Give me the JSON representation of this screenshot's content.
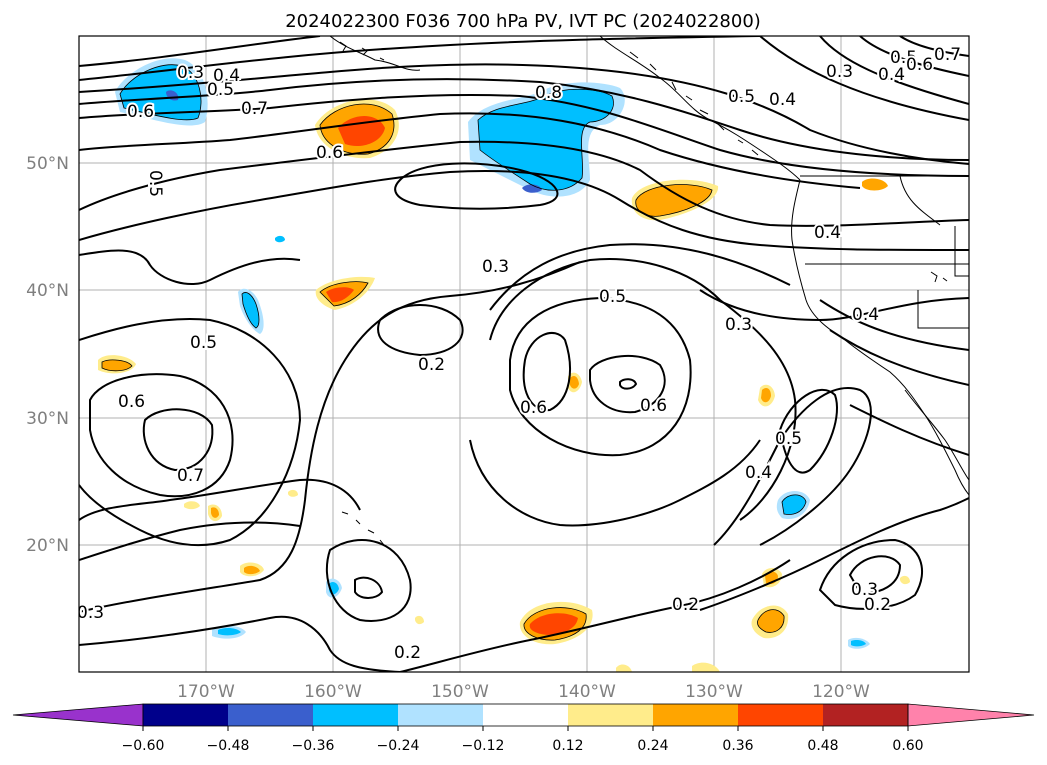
{
  "title": "2024022300 F036 700 hPa PV, IVT PC (2024022800)",
  "lat_labels": [
    "50°N",
    "40°N",
    "30°N",
    "20°N"
  ],
  "lon_labels": [
    "170°W",
    "160°W",
    "150°W",
    "140°W",
    "130°W",
    "120°W"
  ],
  "contour_labels": [
    "0.3",
    "0.4",
    "0.5",
    "0.6",
    "0.7",
    "0.8",
    "0.5",
    "0.4",
    "0.3",
    "0.4",
    "0.5",
    "0.6",
    "0.7",
    "0.6",
    "0.5",
    "0.3",
    "0.4",
    "0.5",
    "0.2",
    "0.6",
    "0.6",
    "0.3",
    "0.4",
    "0.6",
    "0.5",
    "0.7",
    "0.4",
    "0.5",
    "0.2",
    "0.2",
    "0.3",
    "0.3",
    "0.2"
  ],
  "colorbar": {
    "ticks": [
      "−0.60",
      "−0.48",
      "−0.36",
      "−0.24",
      "−0.12",
      "0.12",
      "0.24",
      "0.36",
      "0.48",
      "0.60"
    ],
    "colors": [
      "#9932cc",
      "#00008b",
      "#3a5fcd",
      "#00bfff",
      "#b0e2ff",
      "#ffffff",
      "#ffec8b",
      "#ffa500",
      "#ff4500",
      "#b22222",
      "#ff82ab"
    ]
  }
}
